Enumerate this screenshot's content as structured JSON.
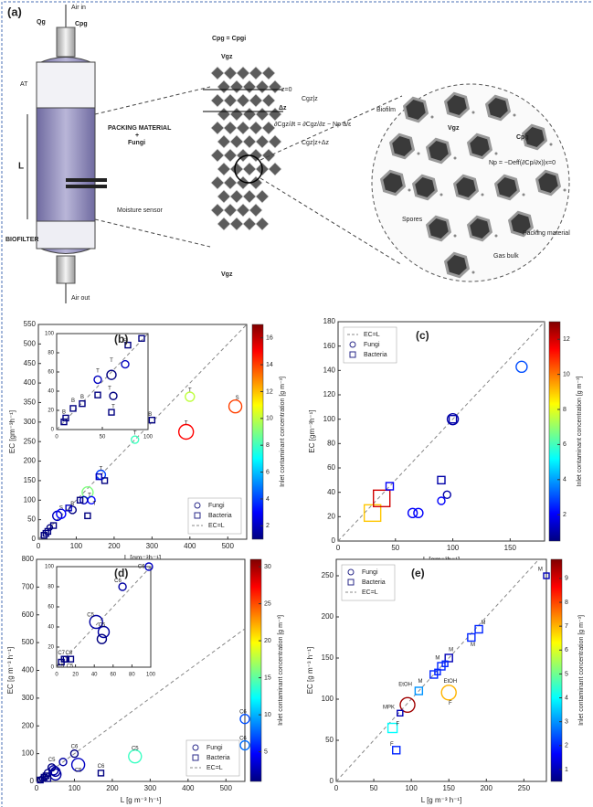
{
  "diagram": {
    "panel": "(a)",
    "air_in": "Air in",
    "qg": "Qg",
    "cpg_in": "Cpg",
    "at": "AT",
    "l": "L",
    "packing": "PACKING MATERIAL",
    "plus": "+",
    "fungi": "Fungi",
    "moisture": "Moisture sensor",
    "biofilter": "BIOFILTER",
    "air_out": "Air out",
    "cpg_eq": "Cpg = Cpgi",
    "vgz_top": "Vgz",
    "z0": "z=0",
    "dz": "Δz",
    "cgz_top": "Cgz|z",
    "equation": "∂Cgz/∂t = ∂Cgz/∂z − Np·a/ε",
    "cgz_bottom": "Cgz|z+Δz",
    "vgz_bottom": "Vgz",
    "biofilm": "Biofilm",
    "vgz_circle": "Vgz",
    "cpg_circle": "Cpg",
    "flux": "Np = −Deff(∂Cp/∂x)|x=0",
    "spores": "Spores",
    "packing_material": "Packing material",
    "gas_bulk": "Gas bulk"
  },
  "chart_data": [
    {
      "type": "scatter",
      "panel": "(b)",
      "xlabel": "L [gm⁻³h⁻¹]",
      "ylabel": "EC [gm⁻³h⁻¹]",
      "xlim": [
        0,
        550
      ],
      "ylim": [
        0,
        550
      ],
      "xticks": [
        0,
        100,
        200,
        300,
        400,
        500
      ],
      "yticks": [
        0,
        50,
        100,
        150,
        200,
        250,
        300,
        350,
        400,
        450,
        500,
        550
      ],
      "legend": "lower right",
      "colorbar": {
        "label": "Inlet contaminant concentration [g m⁻³]",
        "clim": [
          1,
          17
        ],
        "ticks": [
          2,
          4,
          6,
          8,
          10,
          12,
          14,
          16
        ],
        "colormap": "jet"
      },
      "series": [
        {
          "name": "Fungi",
          "marker": "circle",
          "x": [
            520,
            390,
            400,
            255,
            165,
            130,
            140,
            50,
            60,
            90,
            120,
            30
          ],
          "values": [
            340,
            275,
            365,
            255,
            165,
            120,
            100,
            60,
            65,
            75,
            100,
            30
          ],
          "conc": [
            14,
            15,
            10,
            8,
            4,
            9,
            3,
            2,
            3,
            1,
            2,
            1
          ],
          "sizes": [
            7,
            8,
            5,
            4,
            5,
            6,
            4,
            5,
            5,
            4,
            4,
            3
          ]
        },
        {
          "name": "Bacteria",
          "marker": "square",
          "x": [
            15,
            25,
            40,
            80,
            110,
            130,
            175,
            300,
            160,
            20
          ],
          "values": [
            10,
            20,
            35,
            80,
            100,
            60,
            150,
            305,
            160,
            15
          ],
          "conc": [
            1,
            1,
            1,
            2,
            1,
            1,
            1,
            1,
            2,
            1
          ],
          "sizes": [
            3,
            3,
            3,
            3,
            3,
            3,
            3,
            3,
            3,
            3
          ]
        },
        {
          "name": "EC=L",
          "marker": "dashed-line",
          "color": "#888888"
        }
      ],
      "annotations": [
        {
          "text": "S",
          "x": 525,
          "y": 362
        },
        {
          "text": "T",
          "x": 400,
          "y": 382
        },
        {
          "text": "T",
          "x": 390,
          "y": 298
        },
        {
          "text": "T",
          "x": 255,
          "y": 272
        },
        {
          "text": "B",
          "x": 295,
          "y": 320
        },
        {
          "text": "T",
          "x": 165,
          "y": 180
        },
        {
          "text": "T",
          "x": 135,
          "y": 112
        },
        {
          "text": "T",
          "x": 148,
          "y": 92
        },
        {
          "text": "S",
          "x": 60,
          "y": 80
        },
        {
          "text": "B",
          "x": 90,
          "y": 90
        }
      ],
      "inset": {
        "xlim": [
          0,
          100
        ],
        "ylim": [
          0,
          100
        ],
        "xticks": [
          0,
          50,
          100
        ],
        "yticks": [
          0,
          20,
          40,
          60,
          80,
          100
        ],
        "series": [
          {
            "marker": "circle",
            "x": [
              75,
              60,
              62,
              45
            ],
            "values": [
              68,
              57,
              35,
              52
            ],
            "conc": [
              2,
              1,
              1,
              2
            ],
            "sizes": [
              4,
              5,
              4,
              4
            ]
          },
          {
            "marker": "square",
            "x": [
              8,
              10,
              18,
              28,
              45,
              60,
              78,
              93
            ],
            "values": [
              8,
              12,
              22,
              27,
              36,
              18,
              88,
              95
            ],
            "conc": [
              1,
              1,
              1,
              1,
              1,
              1,
              1,
              1
            ],
            "sizes": [
              3,
              3,
              3,
              3,
              3,
              3,
              3,
              3
            ]
          }
        ],
        "annotations": [
          {
            "text": "S",
            "x": 75,
            "y": 92
          },
          {
            "text": "T",
            "x": 60,
            "y": 72
          },
          {
            "text": "T",
            "x": 58,
            "y": 43
          },
          {
            "text": "T",
            "x": 62,
            "y": 24
          },
          {
            "text": "T",
            "x": 45,
            "y": 61
          },
          {
            "text": "B",
            "x": 8,
            "y": 18
          },
          {
            "text": "B",
            "x": 18,
            "y": 30
          },
          {
            "text": "B",
            "x": 28,
            "y": 34
          }
        ]
      }
    },
    {
      "type": "scatter",
      "panel": "(c)",
      "xlabel": "L [gm⁻³h⁻¹]",
      "ylabel": "EC [gm⁻³h⁻¹]",
      "xlim": [
        0,
        180
      ],
      "ylim": [
        0,
        180
      ],
      "xticks": [
        0,
        50,
        100,
        150
      ],
      "yticks": [
        0,
        20,
        40,
        60,
        80,
        100,
        120,
        140,
        160,
        180
      ],
      "legend": "upper left",
      "colorbar": {
        "label": "Inlet contaminant concentration [g m⁻³]",
        "clim": [
          0.5,
          13
        ],
        "ticks": [
          2,
          4,
          6,
          8,
          10,
          12
        ],
        "colormap": "jet"
      },
      "series": [
        {
          "name": "EC=L",
          "marker": "dashed-line",
          "color": "#888888"
        },
        {
          "name": "Fungi",
          "marker": "circle",
          "x": [
            160,
            100,
            65,
            70,
            90,
            95
          ],
          "values": [
            143,
            100,
            23,
            23,
            33,
            38
          ],
          "conc": [
            3,
            1,
            2,
            2,
            2,
            1
          ],
          "sizes": [
            6,
            6,
            5,
            5,
            4,
            4
          ]
        },
        {
          "name": "Bacteria",
          "marker": "square",
          "x": [
            30,
            38,
            45,
            90,
            100
          ],
          "values": [
            23,
            35,
            45,
            50,
            100
          ],
          "conc": [
            9,
            12,
            2,
            1,
            1
          ],
          "sizes": [
            9,
            9,
            4,
            4,
            4
          ]
        }
      ],
      "annotations": []
    },
    {
      "type": "scatter",
      "panel": "(d)",
      "xlabel": "L [g m⁻³ h⁻¹]",
      "ylabel": "EC [g m⁻³ h⁻¹]",
      "xlim": [
        0,
        550
      ],
      "ylim": [
        0,
        800
      ],
      "xticks": [
        0,
        100,
        200,
        300,
        400,
        500
      ],
      "yticks": [
        0,
        100,
        200,
        300,
        400,
        500,
        600,
        700,
        800
      ],
      "legend": "lower right",
      "colorbar": {
        "label": "Inlet contaminant concentration [g m⁻³]",
        "clim": [
          1,
          31
        ],
        "ticks": [
          5,
          10,
          15,
          20,
          25,
          30
        ],
        "colormap": "jet"
      },
      "series": [
        {
          "name": "Fungi",
          "marker": "circle",
          "x": [
            500,
            260,
            110,
            45,
            50,
            70,
            100,
            550,
            550,
            30,
            40,
            50,
            15,
            10
          ],
          "values": [
            110,
            90,
            60,
            40,
            25,
            70,
            100,
            225,
            130,
            30,
            50,
            35,
            10,
            5
          ],
          "conc": [
            28,
            14,
            3,
            2,
            2,
            2,
            1,
            7,
            8,
            1,
            1,
            2,
            1,
            1
          ],
          "sizes": [
            7,
            7,
            7,
            5,
            6,
            4,
            4,
            5,
            5,
            4,
            4,
            5,
            3,
            3
          ]
        },
        {
          "name": "Bacteria",
          "marker": "square",
          "x": [
            20,
            10,
            30,
            170,
            25
          ],
          "values": [
            15,
            5,
            10,
            30,
            20
          ],
          "conc": [
            1,
            1,
            1,
            1,
            1
          ],
          "sizes": [
            3,
            3,
            3,
            3,
            3
          ]
        },
        {
          "name": "EC=L",
          "marker": "dashed-line",
          "color": "#888888"
        }
      ],
      "annotations": [
        {
          "text": "C5",
          "x": 260,
          "y": 118
        },
        {
          "text": "C5",
          "x": 495,
          "y": 135
        },
        {
          "text": "C6",
          "x": 545,
          "y": 250
        },
        {
          "text": "C6",
          "x": 545,
          "y": 155
        },
        {
          "text": "C6",
          "x": 170,
          "y": 55
        },
        {
          "text": "C6",
          "x": 100,
          "y": 125
        },
        {
          "text": "C5",
          "x": 40,
          "y": 78
        },
        {
          "text": "C5",
          "x": 110,
          "y": 40
        }
      ],
      "inset": {
        "xlim": [
          0,
          100
        ],
        "ylim": [
          0,
          100
        ],
        "xticks": [
          0,
          20,
          40,
          60,
          80,
          100
        ],
        "yticks": [
          0,
          20,
          40,
          60,
          80,
          100
        ],
        "series": [
          {
            "marker": "circle",
            "x": [
              98,
              70,
              42,
              50,
              48
            ],
            "values": [
              100,
              80,
              45,
              35,
              28
            ],
            "conc": [
              3,
              2,
              2,
              2,
              1
            ],
            "sizes": [
              4,
              4,
              7,
              6,
              5
            ]
          },
          {
            "marker": "square",
            "x": [
              5,
              8,
              10,
              15
            ],
            "values": [
              5,
              8,
              8,
              8
            ],
            "conc": [
              1,
              1,
              1,
              1
            ],
            "sizes": [
              3,
              3,
              3,
              3
            ]
          }
        ],
        "annotations": [
          {
            "text": "C6",
            "x": 90,
            "y": 100
          },
          {
            "text": "C6",
            "x": 65,
            "y": 86
          },
          {
            "text": "C5",
            "x": 36,
            "y": 52
          },
          {
            "text": "C5",
            "x": 48,
            "y": 42
          },
          {
            "text": "C7",
            "x": 5,
            "y": 14
          },
          {
            "text": "C8",
            "x": 13,
            "y": 14
          },
          {
            "text": "C5",
            "x": 4,
            "y": 1
          },
          {
            "text": "C5",
            "x": 14,
            "y": 1
          }
        ]
      }
    },
    {
      "type": "scatter",
      "panel": "(e)",
      "xlabel": "L [g m⁻³ h⁻¹]",
      "ylabel": "EC [g m⁻³ h⁻¹]",
      "xlim": [
        0,
        280
      ],
      "ylim": [
        0,
        270
      ],
      "xticks": [
        0,
        50,
        100,
        150,
        200,
        250
      ],
      "yticks": [
        0,
        50,
        100,
        150,
        200,
        250
      ],
      "legend": "upper left",
      "colorbar": {
        "label": "Inlet contaminant concentration [g m⁻³]",
        "clim": [
          0.5,
          9.8
        ],
        "ticks": [
          1,
          2,
          3,
          4,
          5,
          6,
          7,
          8,
          9
        ],
        "colormap": "jet"
      },
      "series": [
        {
          "name": "Fungi",
          "marker": "circle",
          "x": [
            95,
            150
          ],
          "values": [
            93,
            108
          ],
          "conc": [
            9.5,
            7
          ],
          "sizes": [
            8,
            8
          ]
        },
        {
          "name": "Bacteria",
          "marker": "square",
          "x": [
            75,
            80,
            85,
            110,
            130,
            140,
            150,
            180,
            190,
            280,
            135,
            145
          ],
          "values": [
            65,
            38,
            83,
            110,
            130,
            140,
            150,
            175,
            185,
            250,
            133,
            143
          ],
          "conc": [
            4,
            2,
            1,
            3,
            2,
            2,
            1,
            2,
            2,
            1,
            2,
            2
          ],
          "sizes": [
            5,
            4,
            3,
            4,
            4,
            4,
            4,
            4,
            4,
            3,
            3,
            3
          ]
        },
        {
          "name": "EC=L",
          "marker": "dashed-line",
          "color": "#888888"
        }
      ],
      "annotations": [
        {
          "text": "M",
          "x": 272,
          "y": 258
        },
        {
          "text": "M",
          "x": 196,
          "y": 193
        },
        {
          "text": "M",
          "x": 182,
          "y": 166
        },
        {
          "text": "M",
          "x": 153,
          "y": 160
        },
        {
          "text": "M",
          "x": 135,
          "y": 150
        },
        {
          "text": "M",
          "x": 112,
          "y": 122
        },
        {
          "text": "EtOH",
          "x": 92,
          "y": 118
        },
        {
          "text": "EtOH",
          "x": 152,
          "y": 122
        },
        {
          "text": "F",
          "x": 152,
          "y": 95
        },
        {
          "text": "MPK",
          "x": 70,
          "y": 90
        },
        {
          "text": "F",
          "x": 82,
          "y": 70
        },
        {
          "text": "F",
          "x": 74,
          "y": 45
        }
      ]
    }
  ]
}
